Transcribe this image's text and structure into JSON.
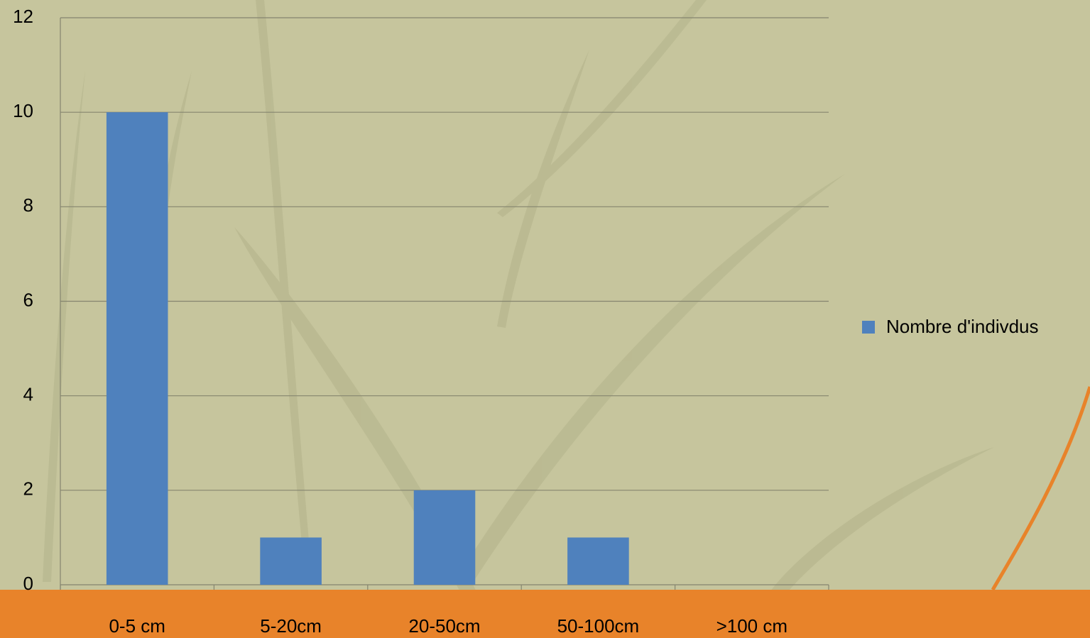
{
  "chart_data": {
    "type": "bar",
    "categories": [
      "0-5 cm",
      "5-20cm",
      "20-50cm",
      "50-100cm",
      ">100 cm"
    ],
    "series": [
      {
        "name": "Nombre d'indivdus",
        "color": "#4f81bd",
        "values": [
          10,
          1,
          2,
          1,
          0
        ]
      }
    ],
    "ylim": [
      0,
      12
    ],
    "yticks": [
      0,
      2,
      4,
      6,
      8,
      10,
      12
    ],
    "grid": true,
    "legend": "right"
  }
}
